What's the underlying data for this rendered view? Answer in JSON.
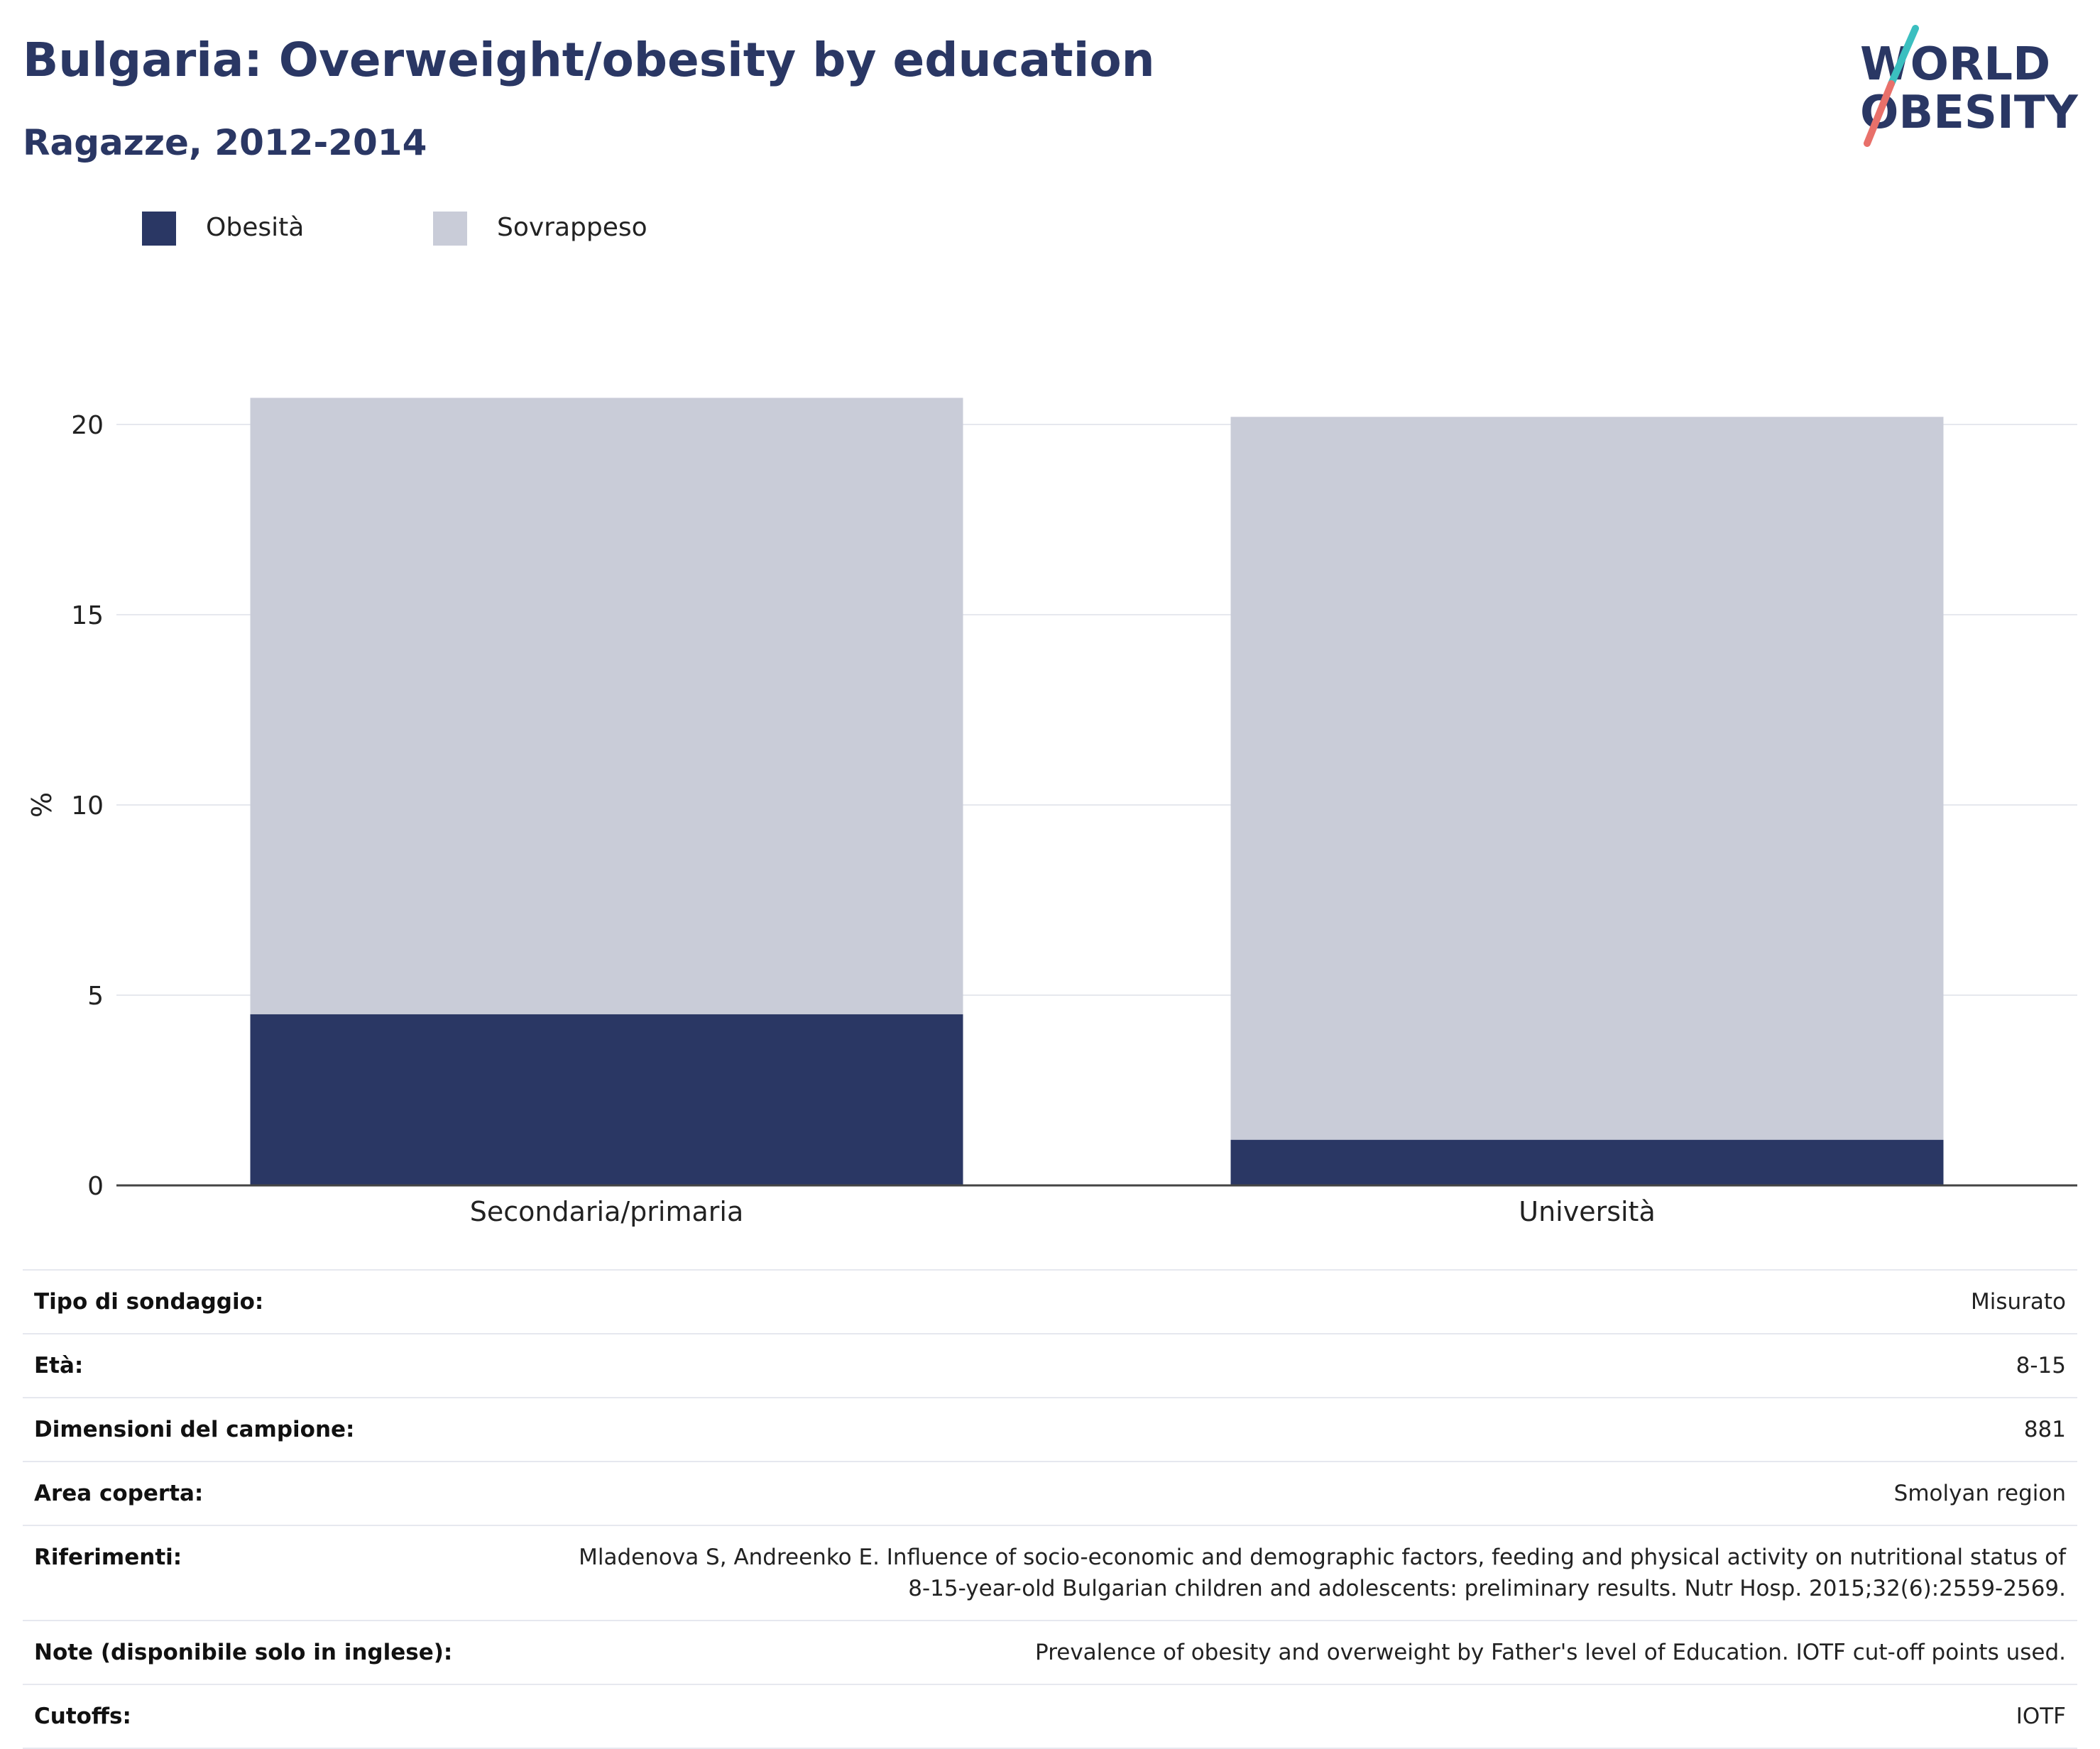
{
  "header": {
    "title": "Bulgaria: Overweight/obesity by education",
    "subtitle": "Ragazze, 2012-2014"
  },
  "logo": {
    "line1": "WORLD",
    "line2": "OBESITY",
    "colors": {
      "text": "#2a3764",
      "slash_top": "#3bbfc0",
      "slash_bottom": "#e8706a"
    }
  },
  "legend": [
    {
      "label": "Obesità",
      "color": "#2a3764"
    },
    {
      "label": "Sovrappeso",
      "color": "#c9ccd8"
    }
  ],
  "chart_data": {
    "type": "bar",
    "stacked": true,
    "categories": [
      "Secondaria/primaria",
      "Università"
    ],
    "series": [
      {
        "name": "Obesità",
        "values": [
          4.5,
          1.2
        ],
        "color": "#2a3764"
      },
      {
        "name": "Sovrappeso",
        "values": [
          16.2,
          19.0
        ],
        "color": "#c9ccd8"
      }
    ],
    "ylabel": "%",
    "ylim": [
      0,
      21
    ],
    "yticks": [
      0,
      5,
      10,
      15,
      20
    ],
    "grid": true,
    "legend_position": "top-left"
  },
  "info": [
    {
      "label": "Tipo di sondaggio:",
      "value": "Misurato"
    },
    {
      "label": "Età:",
      "value": "8-15"
    },
    {
      "label": "Dimensioni del campione:",
      "value": "881"
    },
    {
      "label": "Area coperta:",
      "value": "Smolyan region"
    },
    {
      "label": "Riferimenti:",
      "value": "Mladenova S, Andreenko E. Influence of socio-economic and demographic factors, feeding and physical activity on nutritional status of 8-15-year-old Bulgarian children and adolescents: preliminary results. Nutr Hosp. 2015;32(6):2559-2569."
    },
    {
      "label": "Note (disponibile solo in inglese):",
      "value": "Prevalence of obesity and overweight by Father's level of Education. IOTF cut-off points used."
    },
    {
      "label": "Cutoffs:",
      "value": "IOTF"
    }
  ]
}
